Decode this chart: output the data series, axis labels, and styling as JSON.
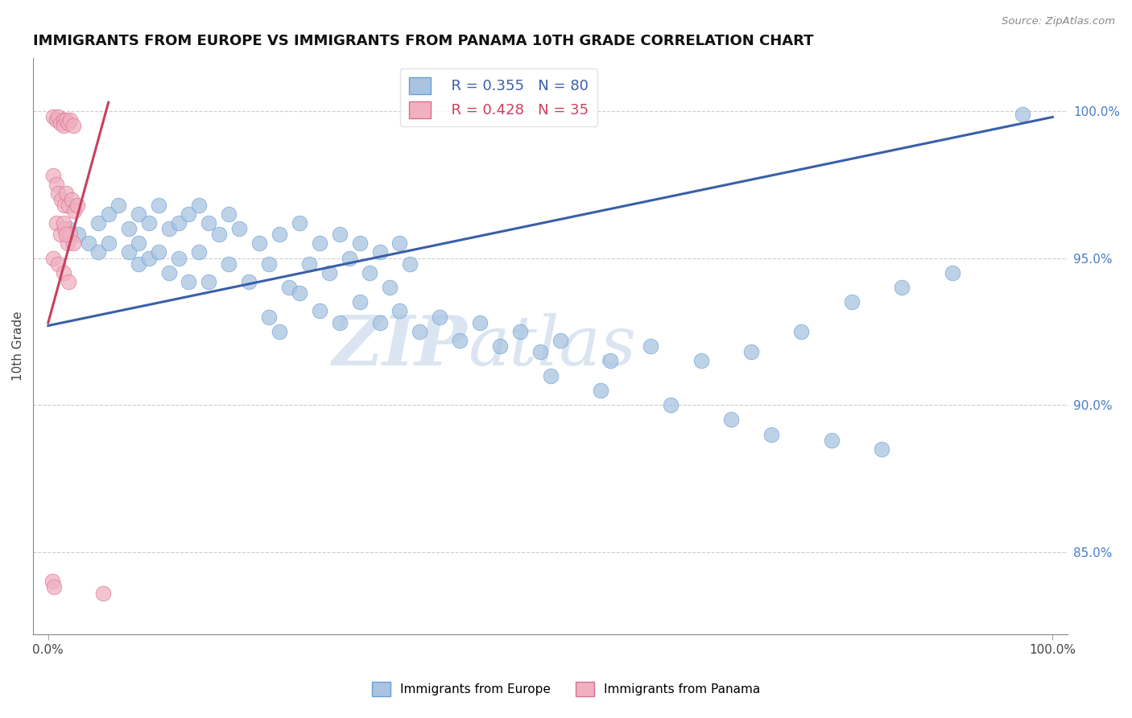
{
  "title": "IMMIGRANTS FROM EUROPE VS IMMIGRANTS FROM PANAMA 10TH GRADE CORRELATION CHART",
  "source": "Source: ZipAtlas.com",
  "ylabel": "10th Grade",
  "legend_blue_label": "Immigrants from Europe",
  "legend_pink_label": "Immigrants from Panama",
  "R_blue": 0.355,
  "N_blue": 80,
  "R_pink": 0.428,
  "N_pink": 35,
  "blue_color": "#a8c4e0",
  "blue_edge_color": "#6a9fd8",
  "blue_line_color": "#3a5fa8",
  "pink_color": "#f0b0c0",
  "pink_edge_color": "#d87090",
  "pink_line_color": "#c84060",
  "watermark_zip": "ZIP",
  "watermark_atlas": "atlas",
  "ytick_labels": [
    "85.0%",
    "90.0%",
    "95.0%",
    "100.0%"
  ],
  "ytick_positions": [
    0.85,
    0.9,
    0.95,
    1.0
  ],
  "xtick_labels": [
    "0.0%",
    "100.0%"
  ],
  "xtick_positions": [
    0.0,
    1.0
  ],
  "blue_scatter_x": [
    0.02,
    0.03,
    0.04,
    0.05,
    0.05,
    0.06,
    0.06,
    0.07,
    0.08,
    0.08,
    0.09,
    0.09,
    0.09,
    0.1,
    0.1,
    0.11,
    0.11,
    0.12,
    0.12,
    0.13,
    0.13,
    0.14,
    0.14,
    0.15,
    0.15,
    0.16,
    0.16,
    0.17,
    0.18,
    0.18,
    0.19,
    0.2,
    0.21,
    0.22,
    0.23,
    0.24,
    0.25,
    0.26,
    0.27,
    0.28,
    0.29,
    0.3,
    0.31,
    0.32,
    0.33,
    0.34,
    0.35,
    0.36,
    0.22,
    0.23,
    0.25,
    0.27,
    0.29,
    0.31,
    0.33,
    0.35,
    0.37,
    0.39,
    0.41,
    0.43,
    0.45,
    0.47,
    0.49,
    0.51,
    0.56,
    0.6,
    0.65,
    0.7,
    0.75,
    0.8,
    0.85,
    0.9,
    0.5,
    0.55,
    0.62,
    0.68,
    0.72,
    0.78,
    0.83,
    0.97
  ],
  "blue_scatter_y": [
    0.96,
    0.958,
    0.955,
    0.962,
    0.952,
    0.965,
    0.955,
    0.968,
    0.96,
    0.952,
    0.965,
    0.955,
    0.948,
    0.962,
    0.95,
    0.968,
    0.952,
    0.96,
    0.945,
    0.962,
    0.95,
    0.965,
    0.942,
    0.968,
    0.952,
    0.962,
    0.942,
    0.958,
    0.965,
    0.948,
    0.96,
    0.942,
    0.955,
    0.948,
    0.958,
    0.94,
    0.962,
    0.948,
    0.955,
    0.945,
    0.958,
    0.95,
    0.955,
    0.945,
    0.952,
    0.94,
    0.955,
    0.948,
    0.93,
    0.925,
    0.938,
    0.932,
    0.928,
    0.935,
    0.928,
    0.932,
    0.925,
    0.93,
    0.922,
    0.928,
    0.92,
    0.925,
    0.918,
    0.922,
    0.915,
    0.92,
    0.915,
    0.918,
    0.925,
    0.935,
    0.94,
    0.945,
    0.91,
    0.905,
    0.9,
    0.895,
    0.89,
    0.888,
    0.885,
    0.999
  ],
  "pink_scatter_x": [
    0.005,
    0.008,
    0.01,
    0.012,
    0.015,
    0.015,
    0.018,
    0.02,
    0.022,
    0.025,
    0.005,
    0.008,
    0.01,
    0.013,
    0.016,
    0.018,
    0.02,
    0.023,
    0.026,
    0.029,
    0.008,
    0.012,
    0.016,
    0.019,
    0.022,
    0.025,
    0.005,
    0.01,
    0.015,
    0.02,
    0.004,
    0.006,
    0.055,
    0.015,
    0.018
  ],
  "pink_scatter_y": [
    0.998,
    0.997,
    0.998,
    0.996,
    0.997,
    0.995,
    0.997,
    0.996,
    0.997,
    0.995,
    0.978,
    0.975,
    0.972,
    0.97,
    0.968,
    0.972,
    0.968,
    0.97,
    0.966,
    0.968,
    0.962,
    0.958,
    0.96,
    0.955,
    0.958,
    0.955,
    0.95,
    0.948,
    0.945,
    0.942,
    0.84,
    0.838,
    0.836,
    0.962,
    0.958
  ],
  "blue_line_x": [
    0.0,
    1.0
  ],
  "blue_line_y": [
    0.927,
    0.998
  ],
  "pink_line_x": [
    0.0,
    0.06
  ],
  "pink_line_y": [
    0.928,
    1.003
  ],
  "xlim": [
    -0.015,
    1.015
  ],
  "ylim": [
    0.822,
    1.018
  ]
}
